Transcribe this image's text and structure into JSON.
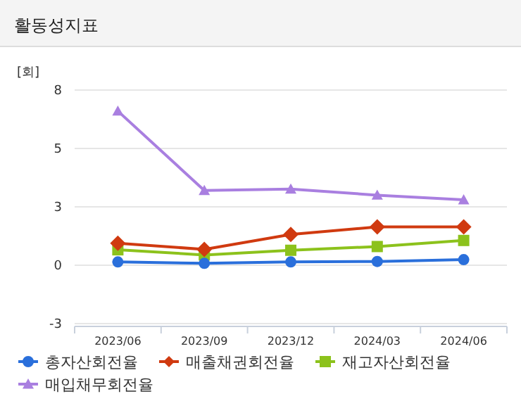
{
  "chart_data": {
    "type": "line",
    "title": "활동성지표",
    "ylabel": "[회]",
    "categories": [
      "2023/06",
      "2023/09",
      "2023/12",
      "2024/03",
      "2024/06"
    ],
    "ylim": [
      -2.5,
      7.5
    ],
    "yticks": [
      {
        "value": -2.5,
        "label": "-3"
      },
      0,
      {
        "value": 2.5,
        "label": "3"
      },
      5,
      {
        "value": 7.5,
        "label": "8"
      }
    ],
    "grid": "y",
    "legend": "bottom",
    "line_style": "solid",
    "series": [
      {
        "name": "총자산회전율",
        "color": "#2a6fdb",
        "marker": "circle",
        "values": [
          0.14,
          0.08,
          0.14,
          0.16,
          0.24
        ]
      },
      {
        "name": "매출채권회전율",
        "color": "#d03a10",
        "marker": "diamond",
        "values": [
          0.94,
          0.68,
          1.32,
          1.64,
          1.64
        ]
      },
      {
        "name": "재고자산회전율",
        "color": "#8cc21c",
        "marker": "square",
        "values": [
          0.66,
          0.44,
          0.64,
          0.8,
          1.06
        ]
      },
      {
        "name": "매입채무회전율",
        "color": "#a97fe0",
        "marker": "triangle",
        "values": [
          6.6,
          3.2,
          3.26,
          3.0,
          2.8
        ]
      }
    ]
  }
}
